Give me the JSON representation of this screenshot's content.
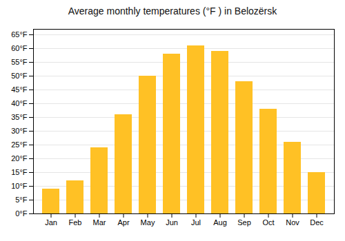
{
  "chart_data": {
    "type": "bar",
    "title": "Average monthly temperatures (°F ) in Belozërsk",
    "categories": [
      "Jan",
      "Feb",
      "Mar",
      "Apr",
      "May",
      "Jun",
      "Jul",
      "Aug",
      "Sep",
      "Oct",
      "Nov",
      "Dec"
    ],
    "values": [
      9,
      12,
      24,
      36,
      50,
      58,
      61,
      59,
      48,
      38,
      26,
      15
    ],
    "color": "#FFC125",
    "ylim": [
      0,
      67
    ],
    "yticks": [
      {
        "value": 0,
        "label": "0°F"
      },
      {
        "value": 5,
        "label": "5°F"
      },
      {
        "value": 10,
        "label": "10°F"
      },
      {
        "value": 15,
        "label": "15°F"
      },
      {
        "value": 20,
        "label": "20°F"
      },
      {
        "value": 25,
        "label": "25°F"
      },
      {
        "value": 30,
        "label": "30°F"
      },
      {
        "value": 35,
        "label": "35°F"
      },
      {
        "value": 40,
        "label": "40°F"
      },
      {
        "value": 45,
        "label": "45°F"
      },
      {
        "value": 50,
        "label": "50°F"
      },
      {
        "value": 55,
        "label": "55°F"
      },
      {
        "value": 60,
        "label": "60°F"
      },
      {
        "value": 65,
        "label": "65°F"
      }
    ],
    "grid": true
  }
}
